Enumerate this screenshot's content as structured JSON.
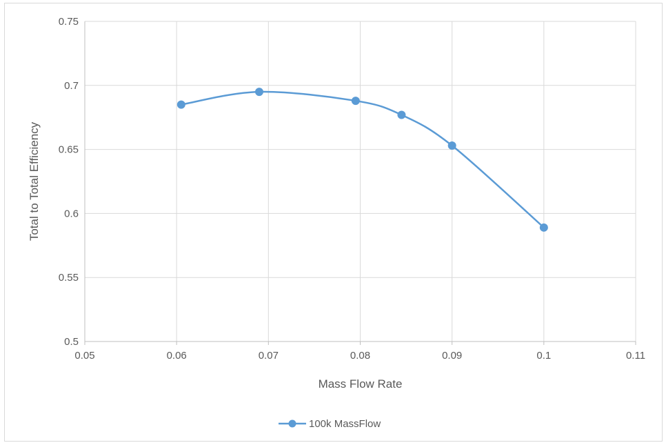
{
  "chart_data": {
    "type": "scatter",
    "title": "",
    "xlabel": "Mass Flow Rate",
    "ylabel": "Total to Total Efficiency",
    "xlim": [
      0.05,
      0.11
    ],
    "ylim": [
      0.5,
      0.75
    ],
    "xticks": [
      "0.05",
      "0.06",
      "0.07",
      "0.08",
      "0.09",
      "0.1",
      "0.11"
    ],
    "yticks": [
      "0.5",
      "0.55",
      "0.6",
      "0.65",
      "0.7",
      "0.75"
    ],
    "grid": true,
    "legend_position": "bottom",
    "smooth_line": true,
    "series": [
      {
        "name": "100k MassFlow",
        "color": "#5b9bd5",
        "x": [
          0.0605,
          0.069,
          0.0795,
          0.0845,
          0.09,
          0.1
        ],
        "y": [
          0.685,
          0.695,
          0.688,
          0.677,
          0.653,
          0.589
        ]
      }
    ]
  }
}
